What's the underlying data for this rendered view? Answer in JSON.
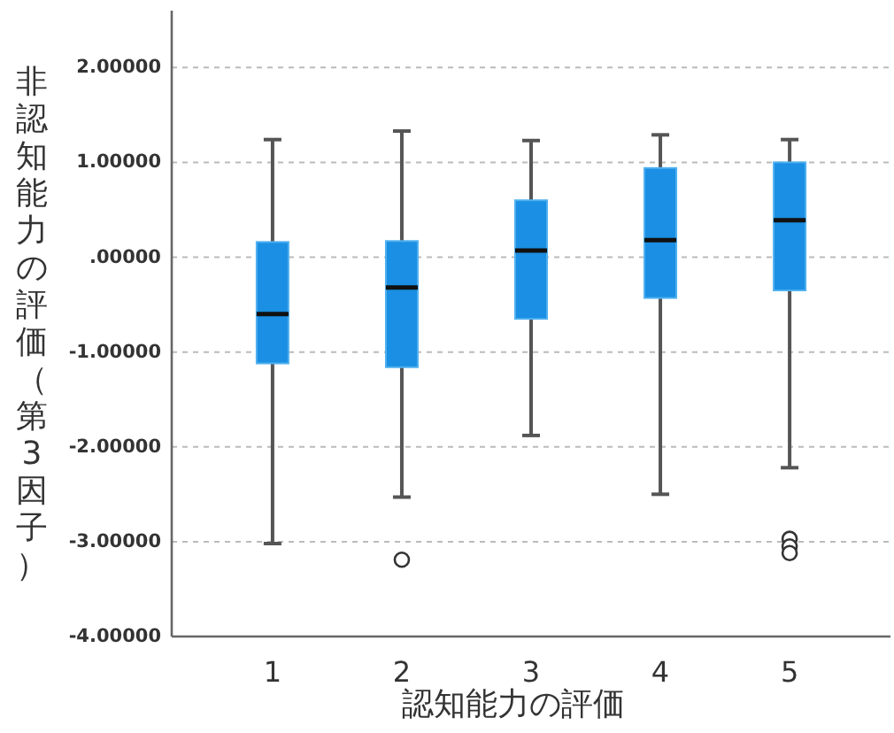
{
  "chart_data": {
    "type": "box",
    "xlabel": "認知能力の評価",
    "ylabel": "非認知能力の評価（第3因子）",
    "categories": [
      "1",
      "2",
      "3",
      "4",
      "5"
    ],
    "color": "#1a8fe3",
    "boxes": [
      {
        "low": -3.02,
        "q1": -1.12,
        "median": -0.6,
        "q3": 0.16,
        "high": 1.24
      },
      {
        "low": -2.53,
        "q1": -1.16,
        "median": -0.32,
        "q3": 0.17,
        "high": 1.33,
        "outliers": [
          -3.19
        ]
      },
      {
        "low": -1.88,
        "q1": -0.65,
        "median": 0.07,
        "q3": 0.6,
        "high": 1.23
      },
      {
        "low": -2.5,
        "q1": -0.43,
        "median": 0.18,
        "q3": 0.94,
        "high": 1.29
      },
      {
        "low": -2.22,
        "q1": -0.35,
        "median": 0.39,
        "q3": 1.0,
        "high": 1.24,
        "outliers": [
          -2.97,
          -3.05,
          -3.12
        ]
      }
    ],
    "ylim": [
      -4,
      2.6
    ],
    "yticks": [
      {
        "value": -4,
        "label": "-4.00000"
      },
      {
        "value": -3,
        "label": "-3.00000"
      },
      {
        "value": -2,
        "label": "-2.00000"
      },
      {
        "value": -1,
        "label": "-1.00000"
      },
      {
        "value": 0,
        "label": ".00000"
      },
      {
        "value": 1,
        "label": "1.00000"
      },
      {
        "value": 2,
        "label": "2.00000"
      }
    ],
    "grid": "y"
  }
}
